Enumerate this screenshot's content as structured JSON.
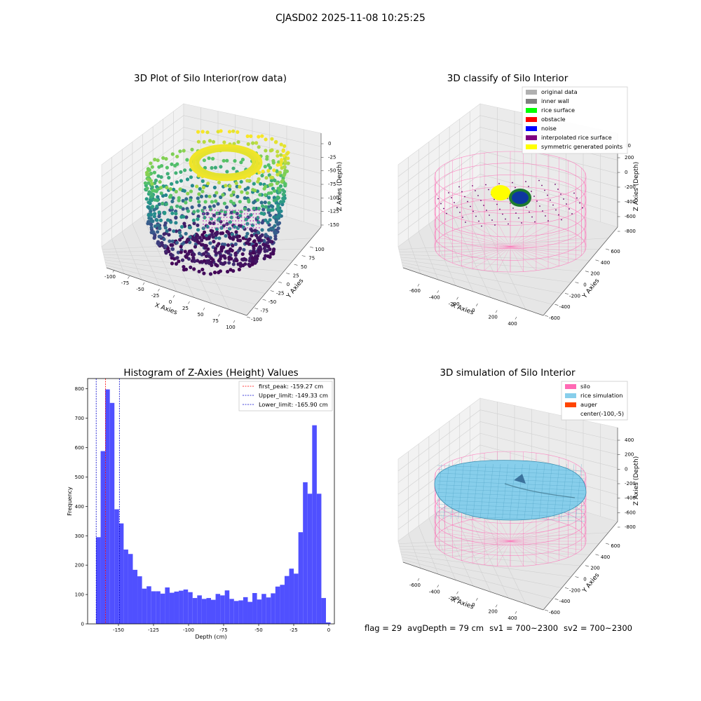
{
  "figure": {
    "title": "CJASD02 2025-11-08 10:25:25",
    "footer": {
      "flag": "flag = 29",
      "avg_depth": "avgDepth = 79 cm",
      "sv1": "sv1 = 700~2300",
      "sv2": "sv2 = 700~2300"
    }
  },
  "colors": {
    "histogram_bar": "#5050ff",
    "first_peak_line": "#ff0000",
    "limit_line": "#0000cc",
    "original_data": "#b0b0b0",
    "inner_wall": "#808080",
    "rice_surface": "#00ff00",
    "obstacle": "#ff0000",
    "noise": "#0000ff",
    "interpolated_rice_surface": "#800080",
    "symmetric_generated_points": "#ffff00",
    "silo": "#ff69b4",
    "rice_simulation": "#87ceeb",
    "auger": "#ff4500"
  },
  "panels": {
    "raw": {
      "title": "3D Plot of Silo Interior(row data)",
      "xlabel": "X Axies",
      "ylabel": "Y Axies",
      "zlabel": "Z Axies (Depth)",
      "xticks": [
        "-100",
        "-75",
        "-50",
        "-25",
        "0",
        "25",
        "50",
        "75",
        "100"
      ],
      "yticks": [
        "-100",
        "-75",
        "-50",
        "-25",
        "0",
        "25",
        "50",
        "75",
        "100"
      ],
      "zticks": [
        "0",
        "-25",
        "-50",
        "-75",
        "-100",
        "-125",
        "-150"
      ]
    },
    "classify": {
      "title": "3D classify of Silo Interior",
      "xlabel": "X Axies",
      "ylabel": "Y Axies",
      "zlabel": "Z Axies (Depth)",
      "xticks": [
        "-600",
        "-400",
        "-200",
        "0",
        "200",
        "400"
      ],
      "yticks": [
        "-600",
        "-400",
        "-200",
        "0",
        "200",
        "400",
        "600"
      ],
      "zticks": [
        "200",
        "0",
        "-200",
        "-400",
        "-600",
        "-800"
      ],
      "ztick_top": "00",
      "legend": [
        {
          "label": "original data",
          "color": "#b0b0b0"
        },
        {
          "label": "inner wall",
          "color": "#808080"
        },
        {
          "label": "rice surface",
          "color": "#00ff00"
        },
        {
          "label": "obstacle",
          "color": "#ff0000"
        },
        {
          "label": "noise",
          "color": "#0000ff"
        },
        {
          "label": "interpolated rice surface",
          "color": "#800080"
        },
        {
          "label": "symmetric generated points",
          "color": "#ffff00"
        }
      ]
    },
    "simulation": {
      "title": "3D simulation of Silo Interior",
      "xlabel": "X Axies",
      "ylabel": "Y Axies",
      "zlabel": "Z Axies (Depth)",
      "xticks": [
        "-600",
        "-400",
        "-200",
        "0",
        "200",
        "400"
      ],
      "yticks": [
        "-600",
        "-400",
        "-200",
        "0",
        "200",
        "400",
        "600"
      ],
      "zticks": [
        "400",
        "200",
        "0",
        "-200",
        "-400",
        "-600",
        "-800"
      ],
      "legend": [
        {
          "label": "silo",
          "color": "#ff69b4"
        },
        {
          "label": "rice simulation",
          "color": "#87ceeb"
        },
        {
          "label": "auger",
          "color": "#ff4500"
        },
        {
          "label": "center(-100,-5)",
          "color": ""
        }
      ]
    }
  },
  "chart_data": {
    "type": "bar",
    "title": "Histogram of Z-Axies (Height) Values",
    "xlabel": "Depth (cm)",
    "ylabel": "Frequency",
    "xlim": [
      -172,
      4
    ],
    "ylim": [
      0,
      835
    ],
    "xticks": [
      -150,
      -125,
      -100,
      -75,
      -50,
      -25,
      0
    ],
    "yticks": [
      0,
      100,
      200,
      300,
      400,
      500,
      600,
      700,
      800
    ],
    "bin_edges_start": -166,
    "bin_width": 3.28,
    "values": [
      295,
      588,
      798,
      752,
      390,
      342,
      253,
      238,
      184,
      162,
      120,
      128,
      111,
      111,
      103,
      124,
      106,
      110,
      113,
      117,
      108,
      88,
      97,
      85,
      88,
      82,
      102,
      97,
      114,
      85,
      78,
      80,
      91,
      75,
      105,
      83,
      102,
      90,
      104,
      127,
      133,
      163,
      188,
      171,
      312,
      482,
      443,
      676,
      443,
      88,
      5
    ],
    "reference_lines": [
      {
        "name": "first_peak",
        "label": "first_peak: -159.27 cm",
        "x": -159.27,
        "color": "#ff0000"
      },
      {
        "name": "upper_limit",
        "label": "Upper_limit: -149.33 cm",
        "x": -149.33,
        "color": "#0000cc"
      },
      {
        "name": "lower_limit",
        "label": "Lower_limit: -165.90 cm",
        "x": -165.9,
        "color": "#0000cc"
      }
    ]
  }
}
